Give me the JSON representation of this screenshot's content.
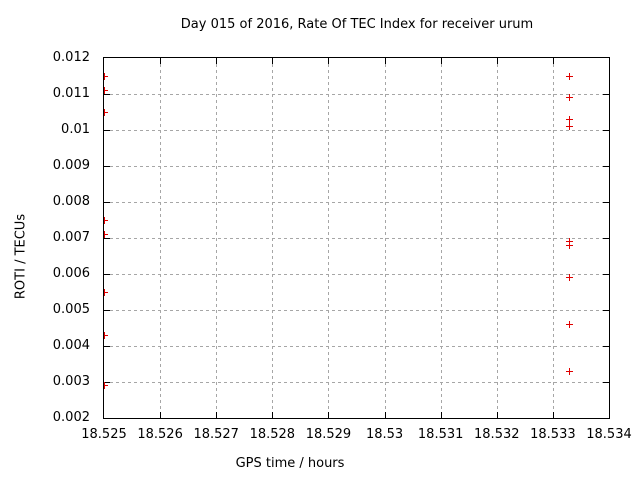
{
  "chart_data": {
    "type": "scatter",
    "title": "Day 015 of 2016, Rate Of TEC Index for receiver urum",
    "xlabel": "GPS time / hours",
    "ylabel": "ROTI / TECUs",
    "xlim": [
      18.525,
      18.534
    ],
    "ylim": [
      0.002,
      0.012
    ],
    "grid": true,
    "legend_position": "none",
    "marker": "plus",
    "marker_color": "#e00000",
    "axis_color": "#000000",
    "grid_color": "#a6a6a6",
    "xticks": [
      {
        "v": 18.525,
        "label": "18.525"
      },
      {
        "v": 18.526,
        "label": "18.526"
      },
      {
        "v": 18.527,
        "label": "18.527"
      },
      {
        "v": 18.528,
        "label": "18.528"
      },
      {
        "v": 18.529,
        "label": "18.529"
      },
      {
        "v": 18.53,
        "label": "18.53"
      },
      {
        "v": 18.531,
        "label": "18.531"
      },
      {
        "v": 18.532,
        "label": "18.532"
      },
      {
        "v": 18.533,
        "label": "18.533"
      },
      {
        "v": 18.534,
        "label": "18.534"
      }
    ],
    "yticks": [
      {
        "v": 0.002,
        "label": "0.002"
      },
      {
        "v": 0.003,
        "label": "0.003"
      },
      {
        "v": 0.004,
        "label": "0.004"
      },
      {
        "v": 0.005,
        "label": "0.005"
      },
      {
        "v": 0.006,
        "label": "0.006"
      },
      {
        "v": 0.007,
        "label": "0.007"
      },
      {
        "v": 0.008,
        "label": "0.008"
      },
      {
        "v": 0.009,
        "label": "0.009"
      },
      {
        "v": 0.01,
        "label": "0.01"
      },
      {
        "v": 0.011,
        "label": "0.011"
      },
      {
        "v": 0.012,
        "label": "0.012"
      }
    ],
    "series": [
      {
        "name": "ROTI",
        "points": [
          {
            "x": 18.525,
            "y": 0.0115
          },
          {
            "x": 18.525,
            "y": 0.0111
          },
          {
            "x": 18.525,
            "y": 0.0105
          },
          {
            "x": 18.525,
            "y": 0.0075
          },
          {
            "x": 18.525,
            "y": 0.0071
          },
          {
            "x": 18.525,
            "y": 0.0055
          },
          {
            "x": 18.525,
            "y": 0.0043
          },
          {
            "x": 18.525,
            "y": 0.0029
          },
          {
            "x": 18.5333,
            "y": 0.0115
          },
          {
            "x": 18.5333,
            "y": 0.0109
          },
          {
            "x": 18.5333,
            "y": 0.0103
          },
          {
            "x": 18.5333,
            "y": 0.0101
          },
          {
            "x": 18.5333,
            "y": 0.0069
          },
          {
            "x": 18.5333,
            "y": 0.0068
          },
          {
            "x": 18.5333,
            "y": 0.0059
          },
          {
            "x": 18.5333,
            "y": 0.0046
          },
          {
            "x": 18.5333,
            "y": 0.0033
          }
        ]
      }
    ]
  }
}
